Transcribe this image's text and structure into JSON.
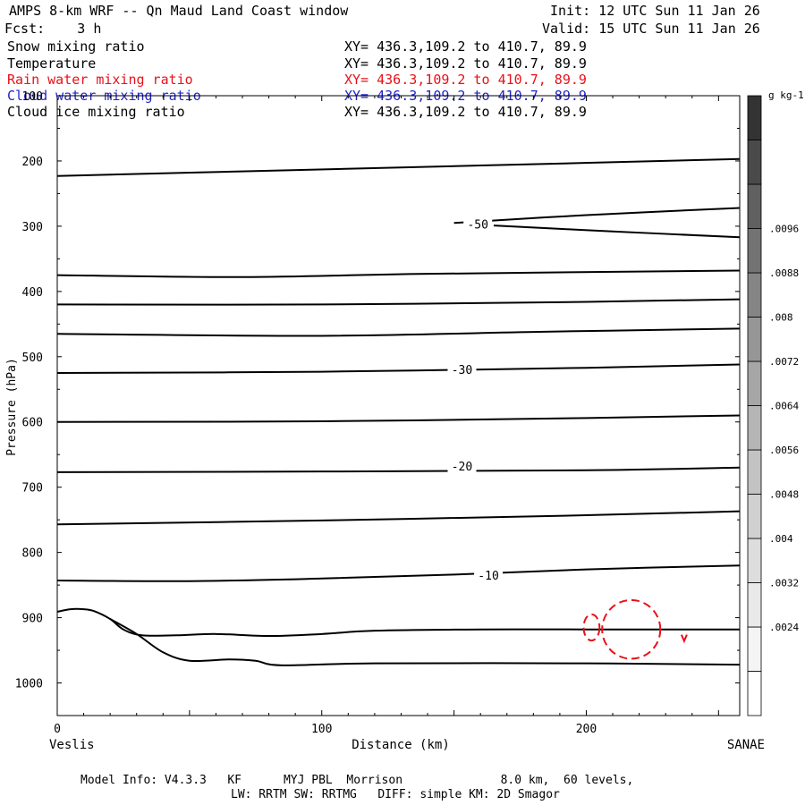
{
  "header": {
    "title": "AMPS 8-km WRF -- Qn Maud Land Coast window",
    "init": "Init: 12 UTC Sun 11 Jan 26",
    "fcst": "Fcst:    3 h",
    "valid": "Valid: 15 UTC Sun 11 Jan 26"
  },
  "fields": [
    {
      "name": "Snow mixing ratio",
      "xy": "XY= 436.3,109.2 to 410.7, 89.9",
      "color": "#000000"
    },
    {
      "name": "Temperature",
      "xy": "XY= 436.3,109.2 to 410.7, 89.9",
      "color": "#000000"
    },
    {
      "name": "Rain water mixing ratio",
      "xy": "XY= 436.3,109.2 to 410.7, 89.9",
      "color": "#e8111a"
    },
    {
      "name": "Cloud water mixing ratio",
      "xy": "XY= 436.3,109.2 to 410.7, 89.9",
      "color": "#2323c8"
    },
    {
      "name": "Cloud ice mixing ratio",
      "xy": "XY= 436.3,109.2 to 410.7, 89.9",
      "color": "#000000"
    }
  ],
  "footer": {
    "line1": "Model Info: V4.3.3   KF      MYJ PBL  Morrison              8.0 km,  60 levels,",
    "line2": "LW: RRTM SW: RRTMG   DIFF: simple KM: 2D Smagor"
  },
  "chart_data": {
    "type": "line",
    "title": "AMPS 8-km WRF -- Qn Maud Land Coast window",
    "xlabel": "Distance (km)",
    "ylabel": "Pressure (hPa)",
    "xlim": [
      0,
      258
    ],
    "ylim": [
      1050,
      100
    ],
    "x_ticks": [
      0,
      100,
      200
    ],
    "y_ticks": [
      100,
      200,
      300,
      400,
      500,
      600,
      700,
      800,
      900,
      1000
    ],
    "x_endpoint_labels": {
      "left": "Veslis",
      "right": "SANAE"
    },
    "temperature_isotherms": [
      {
        "id": "iso-a",
        "points": [
          [
            0,
            223
          ],
          [
            80,
            215
          ],
          [
            160,
            207
          ],
          [
            258,
            197
          ]
        ]
      },
      {
        "id": "iso-b",
        "points": [
          [
            150,
            295
          ],
          [
            200,
            283
          ],
          [
            258,
            272
          ]
        ]
      },
      {
        "id": "iso-c",
        "points": [
          [
            165,
            299
          ],
          [
            210,
            308
          ],
          [
            258,
            317
          ]
        ]
      },
      {
        "id": "iso-d",
        "points": [
          [
            0,
            375
          ],
          [
            70,
            378
          ],
          [
            140,
            373
          ],
          [
            258,
            368
          ]
        ]
      },
      {
        "id": "iso-e",
        "points": [
          [
            0,
            420
          ],
          [
            100,
            420
          ],
          [
            200,
            416
          ],
          [
            258,
            412
          ]
        ]
      },
      {
        "id": "iso-f",
        "points": [
          [
            0,
            465
          ],
          [
            100,
            468
          ],
          [
            180,
            462
          ],
          [
            258,
            457
          ]
        ]
      },
      {
        "id": "iso-g",
        "points": [
          [
            0,
            525
          ],
          [
            100,
            523
          ],
          [
            200,
            517
          ],
          [
            258,
            512
          ]
        ]
      },
      {
        "id": "iso-h",
        "points": [
          [
            0,
            600
          ],
          [
            100,
            599
          ],
          [
            200,
            594
          ],
          [
            258,
            590
          ]
        ]
      },
      {
        "id": "iso-i",
        "points": [
          [
            0,
            677
          ],
          [
            100,
            676
          ],
          [
            200,
            674
          ],
          [
            258,
            670
          ]
        ]
      },
      {
        "id": "iso-j",
        "points": [
          [
            0,
            757
          ],
          [
            100,
            751
          ],
          [
            200,
            743
          ],
          [
            258,
            737
          ]
        ]
      },
      {
        "id": "iso-k",
        "points": [
          [
            0,
            843
          ],
          [
            50,
            844
          ],
          [
            100,
            840
          ],
          [
            150,
            834
          ],
          [
            200,
            826
          ],
          [
            258,
            820
          ]
        ]
      },
      {
        "id": "iso-l",
        "points": [
          [
            0,
            891
          ],
          [
            5,
            887
          ],
          [
            10,
            887
          ],
          [
            14,
            890
          ],
          [
            20,
            902
          ],
          [
            25,
            918
          ],
          [
            32,
            927
          ],
          [
            45,
            927
          ],
          [
            60,
            925
          ],
          [
            80,
            928
          ],
          [
            100,
            925
          ],
          [
            120,
            920
          ],
          [
            160,
            918
          ],
          [
            200,
            918
          ],
          [
            258,
            918
          ]
        ]
      },
      {
        "id": "iso-m",
        "points": [
          [
            20,
            902
          ],
          [
            30,
            925
          ],
          [
            40,
            953
          ],
          [
            50,
            966
          ],
          [
            65,
            964
          ],
          [
            75,
            966
          ],
          [
            85,
            973
          ],
          [
            120,
            970
          ],
          [
            200,
            970
          ],
          [
            258,
            972
          ]
        ]
      }
    ],
    "contour_labels": [
      {
        "text": "-50",
        "x": 159,
        "y": 298
      },
      {
        "text": "-30",
        "x": 153,
        "y": 521
      },
      {
        "text": "-20",
        "x": 153,
        "y": 669
      },
      {
        "text": "-10",
        "x": 163,
        "y": 836
      }
    ],
    "rain_water_contours": [
      {
        "id": "rain-1",
        "type": "ellipse",
        "cx": 202,
        "cy": 915,
        "rx": 3,
        "ry": 20
      },
      {
        "id": "rain-2",
        "type": "ellipse",
        "cx": 217,
        "cy": 918,
        "rx": 11,
        "ry": 45
      },
      {
        "id": "rain-3",
        "type": "tick",
        "x": 237,
        "y": 933
      }
    ],
    "colorbar": {
      "unit": "g kg-1",
      "levels": [
        ".0024",
        ".0032",
        ".004",
        ".0048",
        ".0056",
        ".0064",
        ".0072",
        ".008",
        ".0088",
        ".0096"
      ],
      "shades": [
        "#ffffff",
        "#f4f4f4",
        "#e9e9e9",
        "#dddddd",
        "#d0d0d0",
        "#c3c3c3",
        "#b5b5b5",
        "#a6a6a6",
        "#969696",
        "#858585",
        "#737373",
        "#606060",
        "#4a4a4a",
        "#333333"
      ]
    }
  }
}
